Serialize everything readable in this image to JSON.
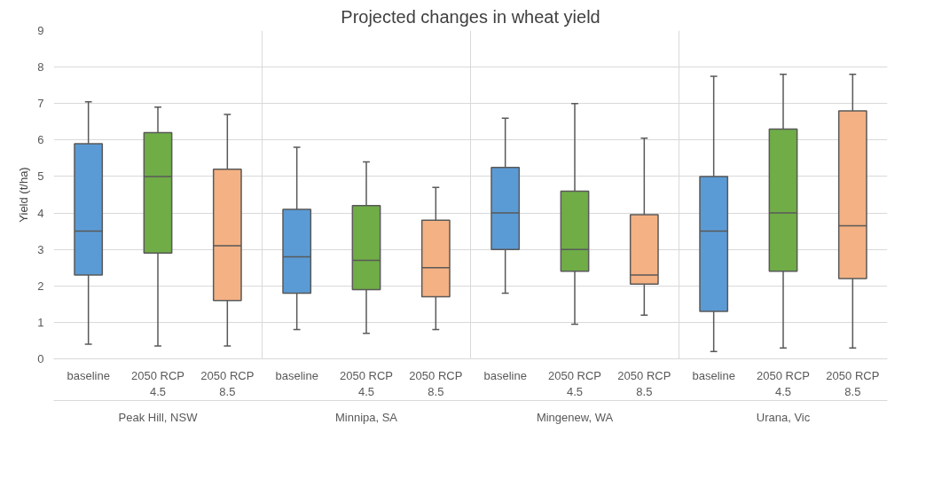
{
  "chart_data": {
    "type": "box",
    "title": "Projected changes in wheat yield",
    "ylabel": "Yield (t/ha)",
    "categories": [
      "baseline",
      "2050 RCP 4.5",
      "2050 RCP 8.5",
      "baseline",
      "2050 RCP 4.5",
      "2050 RCP 8.5",
      "baseline",
      "2050 RCP 4.5",
      "2050 RCP 8.5",
      "baseline",
      "2050 RCP 4.5",
      "2050 RCP 8.5"
    ],
    "colors": [
      "#5b9bd5",
      "#70ad47",
      "#f4b183",
      "#5b9bd5",
      "#70ad47",
      "#f4b183",
      "#5b9bd5",
      "#70ad47",
      "#f4b183",
      "#5b9bd5",
      "#70ad47",
      "#f4b183"
    ],
    "boxes": [
      {
        "low": 0.4,
        "q1": 2.3,
        "median": 3.5,
        "q3": 5.9,
        "high": 7.05
      },
      {
        "low": 0.35,
        "q1": 2.9,
        "median": 5.0,
        "q3": 6.2,
        "high": 6.9
      },
      {
        "low": 0.35,
        "q1": 1.6,
        "median": 3.1,
        "q3": 5.2,
        "high": 6.7
      },
      {
        "low": 0.8,
        "q1": 1.8,
        "median": 2.8,
        "q3": 4.1,
        "high": 5.8
      },
      {
        "low": 0.7,
        "q1": 1.9,
        "median": 2.7,
        "q3": 4.2,
        "high": 5.4
      },
      {
        "low": 0.8,
        "q1": 1.7,
        "median": 2.5,
        "q3": 3.8,
        "high": 4.7
      },
      {
        "low": 1.8,
        "q1": 3.0,
        "median": 4.0,
        "q3": 5.25,
        "high": 6.6
      },
      {
        "low": 0.95,
        "q1": 2.4,
        "median": 3.0,
        "q3": 4.6,
        "high": 7.0
      },
      {
        "low": 1.2,
        "q1": 2.05,
        "median": 2.3,
        "q3": 3.95,
        "high": 6.05
      },
      {
        "low": 0.2,
        "q1": 1.3,
        "median": 3.5,
        "q3": 5.0,
        "high": 7.75
      },
      {
        "low": 0.3,
        "q1": 2.4,
        "median": 4.0,
        "q3": 6.3,
        "high": 7.8
      },
      {
        "low": 0.3,
        "q1": 2.2,
        "median": 3.65,
        "q3": 6.8,
        "high": 7.8
      }
    ],
    "annotations": [
      "Peak Hill, NSW",
      "Minnipa, SA",
      "Mingenew, WA",
      "Urana, Vic"
    ],
    "ylim": [
      0,
      9
    ],
    "yticks": [
      0,
      1,
      2,
      3,
      4,
      5,
      6,
      7,
      8,
      9
    ],
    "grid": "y"
  }
}
